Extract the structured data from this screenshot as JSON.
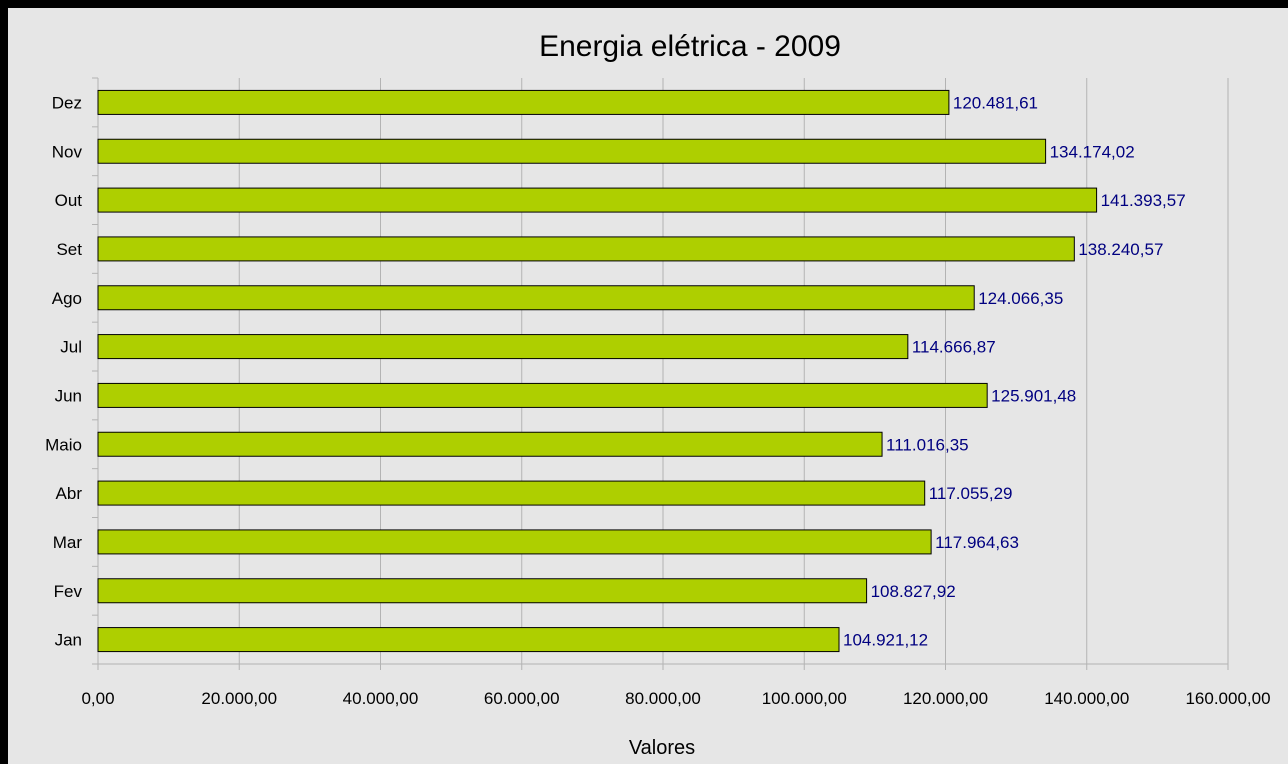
{
  "chart_data": {
    "type": "bar",
    "orientation": "horizontal",
    "title": "Energia elétrica - 2009",
    "xlabel": "Valores",
    "ylabel": "",
    "categories": [
      "Jan",
      "Fev",
      "Mar",
      "Abr",
      "Maio",
      "Jun",
      "Jul",
      "Ago",
      "Set",
      "Out",
      "Nov",
      "Dez"
    ],
    "values": [
      104921.12,
      108827.92,
      117964.63,
      117055.29,
      111016.35,
      125901.48,
      114666.87,
      124066.35,
      138240.57,
      141393.57,
      134174.02,
      120481.61
    ],
    "value_labels": [
      "104.921,12",
      "108.827,92",
      "117.964,63",
      "117.055,29",
      "111.016,35",
      "125.901,48",
      "114.666,87",
      "124.066,35",
      "138.240,57",
      "141.393,57",
      "134.174,02",
      "120.481,61"
    ],
    "xlim": [
      0,
      160000
    ],
    "x_ticks": [
      0,
      20000,
      40000,
      60000,
      80000,
      100000,
      120000,
      140000,
      160000
    ],
    "x_tick_labels": [
      "0,00",
      "20.000,00",
      "40.000,00",
      "60.000,00",
      "80.000,00",
      "100.000,00",
      "120.000,00",
      "140.000,00",
      "160.000,00"
    ],
    "grid": true,
    "legend": "none",
    "colors": {
      "bar_fill": "#aecf00",
      "bar_stroke": "#000000",
      "data_label": "#000080",
      "grid": "#b3b3b3",
      "background": "#e6e6e6",
      "border": "#000000"
    }
  }
}
